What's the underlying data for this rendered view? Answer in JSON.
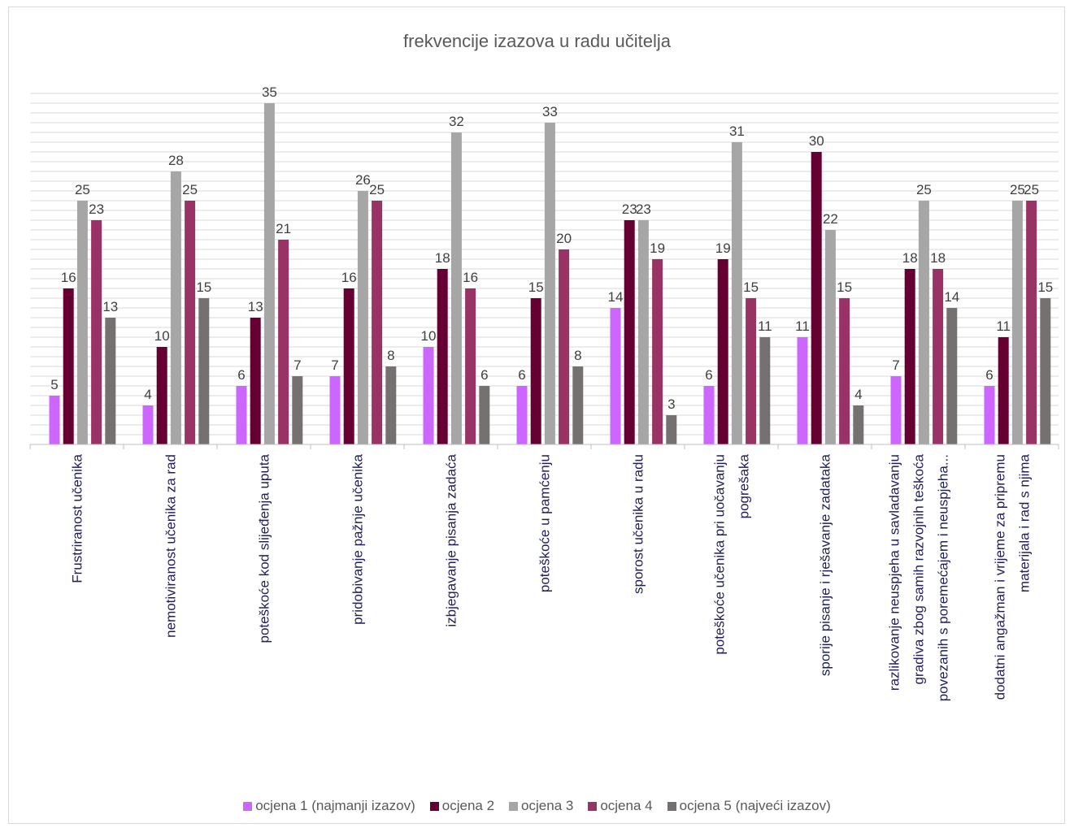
{
  "chart_data": {
    "type": "bar",
    "title": "frekvencije izazova u radu učitelja",
    "xlabel": "",
    "ylabel": "",
    "ylim": [
      0,
      36
    ],
    "grid": true,
    "legend_position": "bottom",
    "categories": [
      [
        "Frustriranost učenika"
      ],
      [
        "nemotiviranost učenika za rad"
      ],
      [
        "poteškoće kod slijeđenja uputa"
      ],
      [
        "pridobivanje pažnje učenika"
      ],
      [
        "izbjegavanje pisanja zadaća"
      ],
      [
        "poteškoće u pamćenju"
      ],
      [
        "sporost učenika u radu"
      ],
      [
        "poteškoće učenika pri uočavanju",
        "pogrešaka"
      ],
      [
        "sporije pisanje i rješavanje zadataka"
      ],
      [
        "razlikovanje neuspjeha u savladavanju",
        "gradiva zbog samih razvojnih teškoća",
        "povezanih s poremećajem i neuspjeha..."
      ],
      [
        "dodatni angažman i vrijeme za pripremu",
        "materijala i rad s njima"
      ]
    ],
    "series": [
      {
        "name": "ocjena 1 (najmanji izazov)",
        "color": "#cc66ff",
        "values": [
          5,
          4,
          6,
          7,
          10,
          6,
          14,
          6,
          11,
          7,
          6
        ]
      },
      {
        "name": "ocjena 2",
        "color": "#660033",
        "values": [
          16,
          10,
          13,
          16,
          18,
          15,
          23,
          19,
          30,
          18,
          11
        ]
      },
      {
        "name": "ocjena 3",
        "color": "#a6a6a6",
        "values": [
          25,
          28,
          35,
          26,
          32,
          33,
          23,
          31,
          22,
          25,
          25
        ]
      },
      {
        "name": "ocjena 4",
        "color": "#993366",
        "values": [
          23,
          25,
          21,
          25,
          16,
          20,
          19,
          15,
          15,
          18,
          25
        ]
      },
      {
        "name": "ocjena 5 (najveći izazov)",
        "color": "#767171",
        "values": [
          13,
          15,
          7,
          8,
          6,
          8,
          3,
          11,
          4,
          14,
          15
        ]
      }
    ]
  }
}
